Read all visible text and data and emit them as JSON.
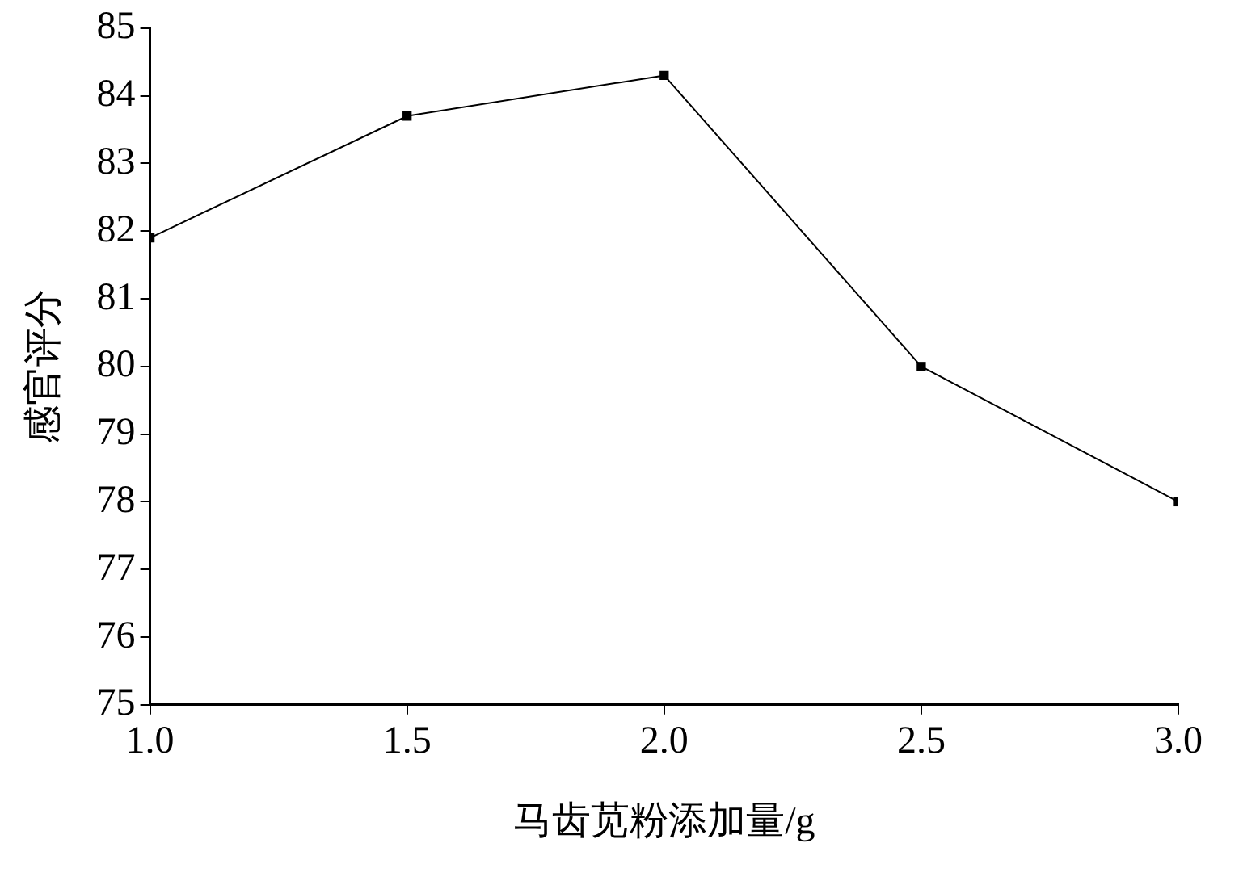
{
  "chart_data": {
    "type": "line",
    "xlabel": "马齿苋粉添加量/g",
    "ylabel": "感官评分",
    "x": [
      1.0,
      1.5,
      2.0,
      2.5,
      3.0
    ],
    "series": [
      {
        "color": "#000000",
        "values": [
          81.9,
          83.7,
          84.3,
          80.0,
          78.0
        ]
      }
    ],
    "xlim": [
      1.0,
      3.0
    ],
    "xticks": [
      {
        "value": 1,
        "label": "1.0"
      },
      {
        "value": 1.5,
        "label": "1.5"
      },
      {
        "value": 2,
        "label": "2.0"
      },
      {
        "value": 2.5,
        "label": "2.5"
      },
      {
        "value": 3,
        "label": "3.0"
      }
    ],
    "ylim": [
      75,
      85
    ],
    "yticks": [
      75,
      76,
      77,
      78,
      79,
      80,
      81,
      82,
      83,
      84,
      85
    ],
    "grid": false,
    "legend": false,
    "marker": "square",
    "line_style": "solid"
  }
}
